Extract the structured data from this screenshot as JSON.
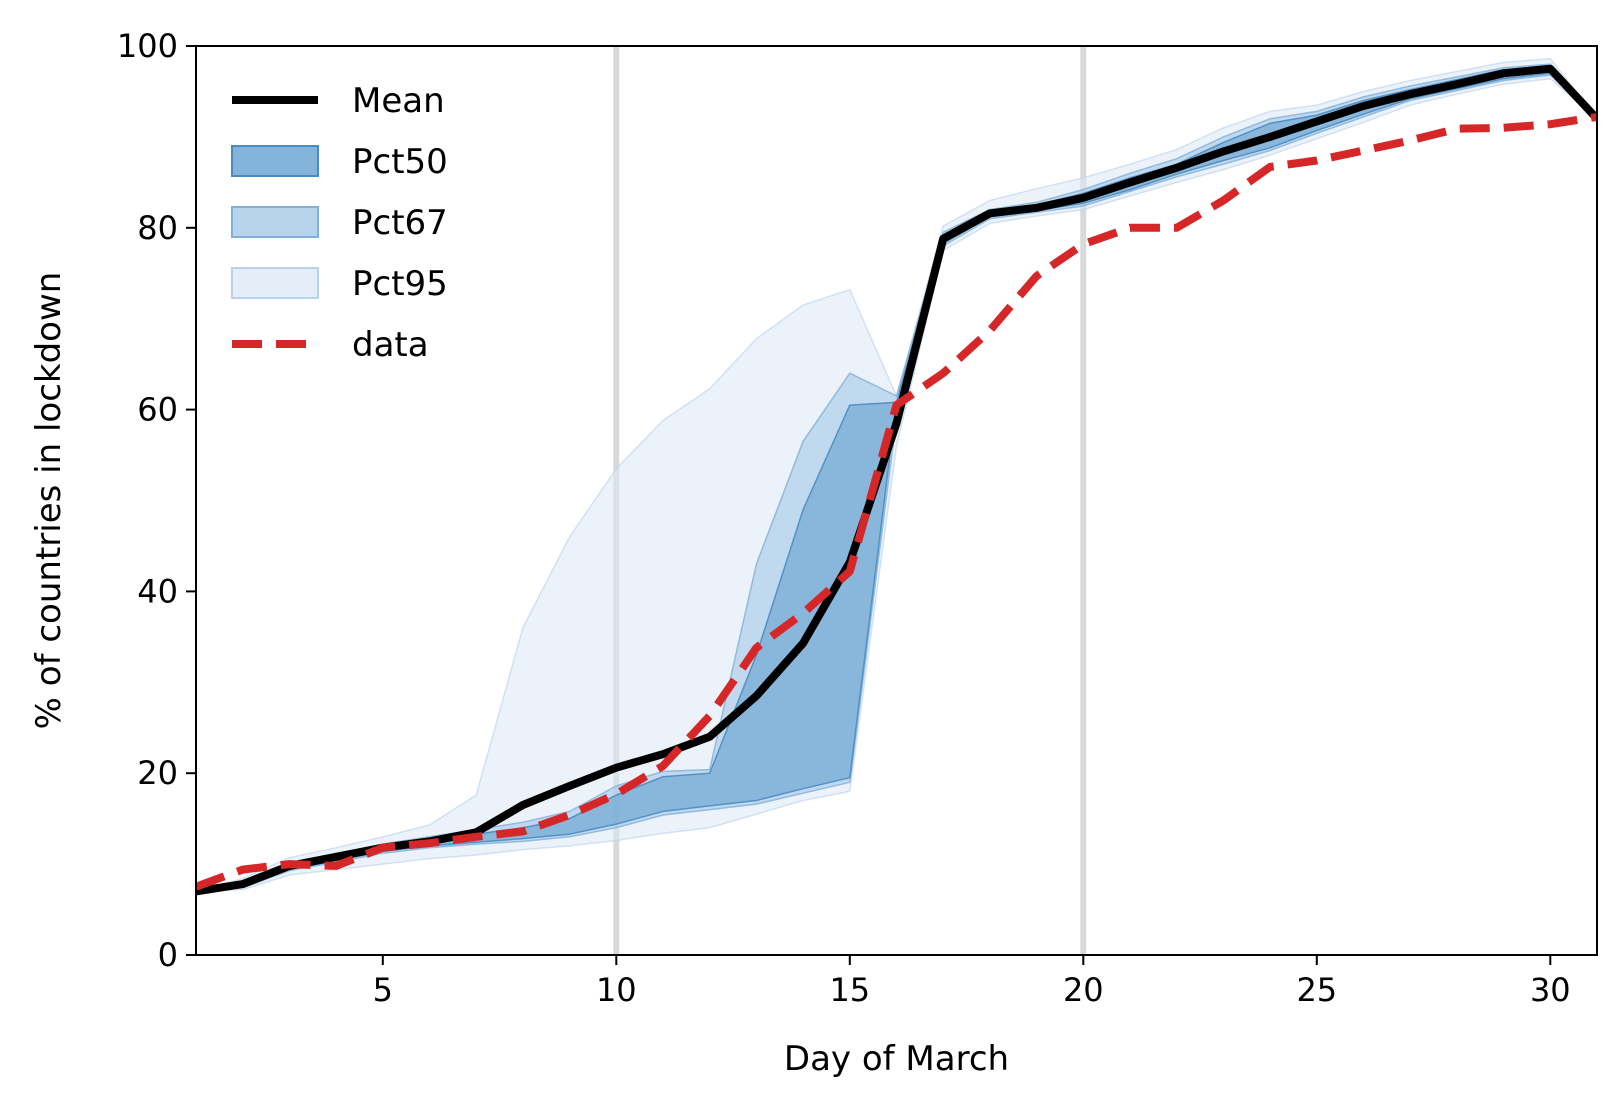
{
  "chart_data": {
    "type": "line",
    "title": "",
    "xlabel": "Day of March",
    "ylabel": "% of countries in lockdown",
    "xlim": [
      1,
      31
    ],
    "ylim": [
      0,
      100
    ],
    "x_ticks": [
      5,
      10,
      15,
      20,
      25,
      30
    ],
    "y_ticks": [
      0,
      20,
      40,
      60,
      80,
      100
    ],
    "grid": false,
    "legend_position": "top-left",
    "vertical_markers": [
      10,
      20
    ],
    "x": [
      1,
      2,
      3,
      4,
      5,
      6,
      7,
      8,
      9,
      10,
      11,
      12,
      13,
      14,
      15,
      16,
      17,
      18,
      19,
      20,
      21,
      22,
      23,
      24,
      25,
      26,
      27,
      28,
      29,
      30,
      31
    ],
    "series": [
      {
        "name": "Mean",
        "kind": "line",
        "color": "#000000",
        "values": [
          7.0,
          7.8,
          9.8,
          10.8,
          11.8,
          12.5,
          13.5,
          16.5,
          18.6,
          20.6,
          22.1,
          24.0,
          28.5,
          34.3,
          43.2,
          58.5,
          78.8,
          81.6,
          82.2,
          83.3,
          85.0,
          86.6,
          88.4,
          90.0,
          91.7,
          93.4,
          94.7,
          95.8,
          97.0,
          97.5,
          92.0
        ]
      },
      {
        "name": "data",
        "kind": "line",
        "style": "dashed",
        "color": "#d62728",
        "values": [
          7.5,
          9.4,
          10.0,
          9.8,
          11.8,
          12.3,
          13.0,
          13.6,
          15.4,
          17.7,
          20.8,
          26.3,
          33.8,
          37.6,
          42.2,
          60.5,
          64.0,
          68.7,
          74.7,
          78.2,
          80.0,
          80.0,
          83.0,
          86.7,
          87.4,
          88.5,
          89.6,
          90.9,
          91.0,
          91.4,
          92.2
        ]
      },
      {
        "name": "Pct50",
        "kind": "band",
        "color": "#4a90c8",
        "lower": [
          7.0,
          7.5,
          9.4,
          10.4,
          11.4,
          12.0,
          12.4,
          12.8,
          13.3,
          14.4,
          15.8,
          16.4,
          17.0,
          18.3,
          19.5,
          60.8,
          78.3,
          81.2,
          81.9,
          82.7,
          84.2,
          85.9,
          87.4,
          88.8,
          90.7,
          92.5,
          94.2,
          95.3,
          96.4,
          97.0,
          92.0
        ],
        "upper": [
          7.0,
          7.8,
          10.0,
          10.9,
          12.0,
          12.7,
          13.3,
          14.0,
          15.0,
          17.6,
          19.6,
          20.0,
          33.0,
          49.0,
          60.5,
          60.8,
          79.2,
          81.8,
          82.5,
          83.8,
          85.5,
          87.0,
          89.4,
          91.5,
          92.4,
          94.0,
          95.2,
          96.3,
          97.4,
          97.8,
          92.0
        ]
      },
      {
        "name": "Pct67",
        "kind": "band",
        "color": "#6ea8d6",
        "lower": [
          7.0,
          7.4,
          9.3,
          10.2,
          11.2,
          11.8,
          12.2,
          12.5,
          13.0,
          14.0,
          15.4,
          16.0,
          16.6,
          17.8,
          19.0,
          59.0,
          78.0,
          81.0,
          81.7,
          82.4,
          84.0,
          85.6,
          87.0,
          88.5,
          90.4,
          92.2,
          94.0,
          95.1,
          96.2,
          96.8,
          92.0
        ],
        "upper": [
          7.0,
          8.0,
          10.2,
          11.1,
          12.2,
          13.0,
          13.8,
          14.6,
          15.8,
          18.6,
          20.2,
          20.4,
          43.0,
          56.5,
          64.0,
          61.5,
          79.5,
          82.0,
          82.8,
          84.2,
          86.0,
          87.6,
          90.0,
          92.0,
          92.8,
          94.4,
          95.6,
          96.6,
          97.6,
          98.0,
          92.0
        ]
      },
      {
        "name": "Pct95",
        "kind": "band",
        "color": "#a9c9e6",
        "lower": [
          7.0,
          7.2,
          8.8,
          9.4,
          10.0,
          10.6,
          11.0,
          11.6,
          12.0,
          12.6,
          13.4,
          14.0,
          15.5,
          17.0,
          18.0,
          56.0,
          77.5,
          80.5,
          81.3,
          82.0,
          83.5,
          85.0,
          86.4,
          88.0,
          89.8,
          91.6,
          93.5,
          94.7,
          95.8,
          96.4,
          92.0
        ],
        "upper": [
          7.0,
          8.4,
          10.7,
          11.8,
          13.0,
          14.3,
          17.6,
          36.0,
          46.0,
          53.5,
          58.8,
          62.3,
          67.8,
          71.5,
          73.2,
          61.5,
          80.2,
          83.0,
          84.3,
          85.5,
          87.0,
          88.6,
          91.0,
          92.8,
          93.5,
          95.0,
          96.2,
          97.2,
          98.2,
          98.6,
          92.0
        ]
      }
    ],
    "legend": [
      {
        "label": "Mean",
        "kind": "line"
      },
      {
        "label": "Pct50",
        "kind": "band"
      },
      {
        "label": "Pct67",
        "kind": "band"
      },
      {
        "label": "Pct95",
        "kind": "band"
      },
      {
        "label": "data",
        "kind": "dashed"
      }
    ]
  }
}
